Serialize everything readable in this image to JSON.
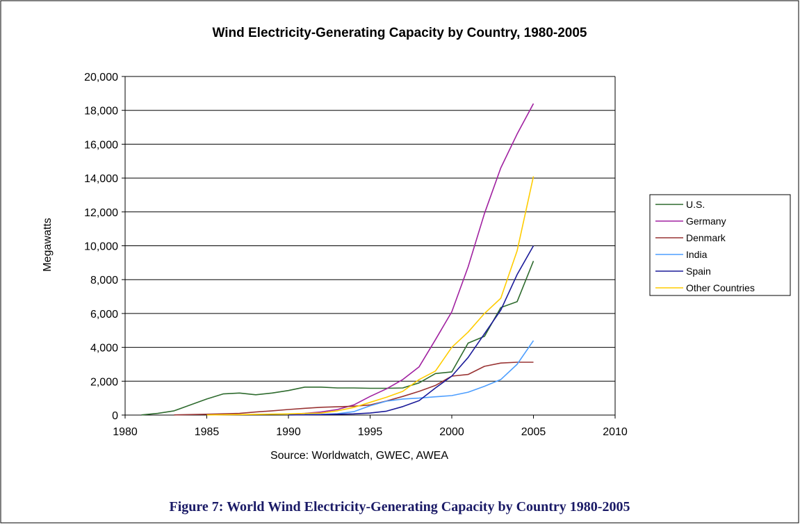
{
  "chart_data": {
    "type": "line",
    "title": "Wind Electricity-Generating Capacity by Country, 1980-2005",
    "xlabel": "Source: Worldwatch, GWEC, AWEA",
    "ylabel": "Megawatts",
    "xlim": [
      1980,
      2010
    ],
    "ylim": [
      0,
      20000
    ],
    "x_ticks": [
      1980,
      1985,
      1990,
      1995,
      2000,
      2005,
      2010
    ],
    "y_ticks": [
      0,
      2000,
      4000,
      6000,
      8000,
      10000,
      12000,
      14000,
      16000,
      18000,
      20000
    ],
    "x_tick_labels": [
      "1980",
      "1985",
      "1990",
      "1995",
      "2000",
      "2005",
      "2010"
    ],
    "y_tick_labels": [
      "0",
      "2,000",
      "4,000",
      "6,000",
      "8,000",
      "10,000",
      "12,000",
      "14,000",
      "16,000",
      "18,000",
      "20,000"
    ],
    "grid": "horizontal",
    "legend_position": "right",
    "series": [
      {
        "name": "U.S.",
        "color": "#2e6b2e",
        "points": [
          [
            1981,
            10
          ],
          [
            1982,
            100
          ],
          [
            1983,
            250
          ],
          [
            1984,
            600
          ],
          [
            1985,
            950
          ],
          [
            1986,
            1250
          ],
          [
            1987,
            1300
          ],
          [
            1988,
            1200
          ],
          [
            1989,
            1300
          ],
          [
            1990,
            1450
          ],
          [
            1991,
            1650
          ],
          [
            1992,
            1650
          ],
          [
            1993,
            1600
          ],
          [
            1994,
            1600
          ],
          [
            1995,
            1580
          ],
          [
            1996,
            1580
          ],
          [
            1997,
            1600
          ],
          [
            1998,
            1900
          ],
          [
            1999,
            2450
          ],
          [
            2000,
            2550
          ],
          [
            2001,
            4250
          ],
          [
            2002,
            4650
          ],
          [
            2003,
            6350
          ],
          [
            2004,
            6700
          ],
          [
            2005,
            9100
          ]
        ]
      },
      {
        "name": "Germany",
        "color": "#a020a0",
        "points": [
          [
            1990,
            50
          ],
          [
            1991,
            100
          ],
          [
            1992,
            180
          ],
          [
            1993,
            330
          ],
          [
            1994,
            600
          ],
          [
            1995,
            1100
          ],
          [
            1996,
            1550
          ],
          [
            1997,
            2100
          ],
          [
            1998,
            2850
          ],
          [
            1999,
            4450
          ],
          [
            2000,
            6100
          ],
          [
            2001,
            8750
          ],
          [
            2002,
            11900
          ],
          [
            2003,
            14600
          ],
          [
            2004,
            16600
          ],
          [
            2005,
            18400
          ]
        ]
      },
      {
        "name": "Denmark",
        "color": "#993333",
        "points": [
          [
            1983,
            10
          ],
          [
            1985,
            50
          ],
          [
            1987,
            100
          ],
          [
            1988,
            180
          ],
          [
            1989,
            250
          ],
          [
            1990,
            330
          ],
          [
            1991,
            400
          ],
          [
            1992,
            460
          ],
          [
            1993,
            490
          ],
          [
            1994,
            520
          ],
          [
            1995,
            600
          ],
          [
            1996,
            830
          ],
          [
            1997,
            1100
          ],
          [
            1998,
            1400
          ],
          [
            1999,
            1750
          ],
          [
            2000,
            2300
          ],
          [
            2001,
            2400
          ],
          [
            2002,
            2880
          ],
          [
            2003,
            3070
          ],
          [
            2004,
            3120
          ],
          [
            2005,
            3120
          ]
        ]
      },
      {
        "name": "India",
        "color": "#4d9eff",
        "points": [
          [
            1991,
            30
          ],
          [
            1992,
            40
          ],
          [
            1993,
            80
          ],
          [
            1994,
            200
          ],
          [
            1995,
            550
          ],
          [
            1996,
            820
          ],
          [
            1997,
            950
          ],
          [
            1998,
            1000
          ],
          [
            1999,
            1080
          ],
          [
            2000,
            1150
          ],
          [
            2001,
            1350
          ],
          [
            2002,
            1700
          ],
          [
            2003,
            2100
          ],
          [
            2004,
            3000
          ],
          [
            2005,
            4400
          ]
        ]
      },
      {
        "name": "Spain",
        "color": "#1a1a99",
        "points": [
          [
            1990,
            10
          ],
          [
            1992,
            30
          ],
          [
            1993,
            50
          ],
          [
            1994,
            70
          ],
          [
            1995,
            120
          ],
          [
            1996,
            230
          ],
          [
            1997,
            500
          ],
          [
            1998,
            850
          ],
          [
            1999,
            1600
          ],
          [
            2000,
            2300
          ],
          [
            2001,
            3400
          ],
          [
            2002,
            4800
          ],
          [
            2003,
            6200
          ],
          [
            2004,
            8300
          ],
          [
            2005,
            10000
          ]
        ]
      },
      {
        "name": "Other Countries",
        "color": "#ffcc00",
        "points": [
          [
            1985,
            10
          ],
          [
            1987,
            30
          ],
          [
            1990,
            70
          ],
          [
            1992,
            120
          ],
          [
            1993,
            250
          ],
          [
            1994,
            450
          ],
          [
            1995,
            750
          ],
          [
            1996,
            1050
          ],
          [
            1997,
            1400
          ],
          [
            1998,
            2100
          ],
          [
            1999,
            2600
          ],
          [
            2000,
            4000
          ],
          [
            2001,
            4900
          ],
          [
            2002,
            6000
          ],
          [
            2003,
            6900
          ],
          [
            2004,
            9700
          ],
          [
            2005,
            14100
          ]
        ]
      }
    ]
  },
  "figure_caption": "Figure 7: World Wind Electricity-Generating Capacity by Country 1980-2005"
}
